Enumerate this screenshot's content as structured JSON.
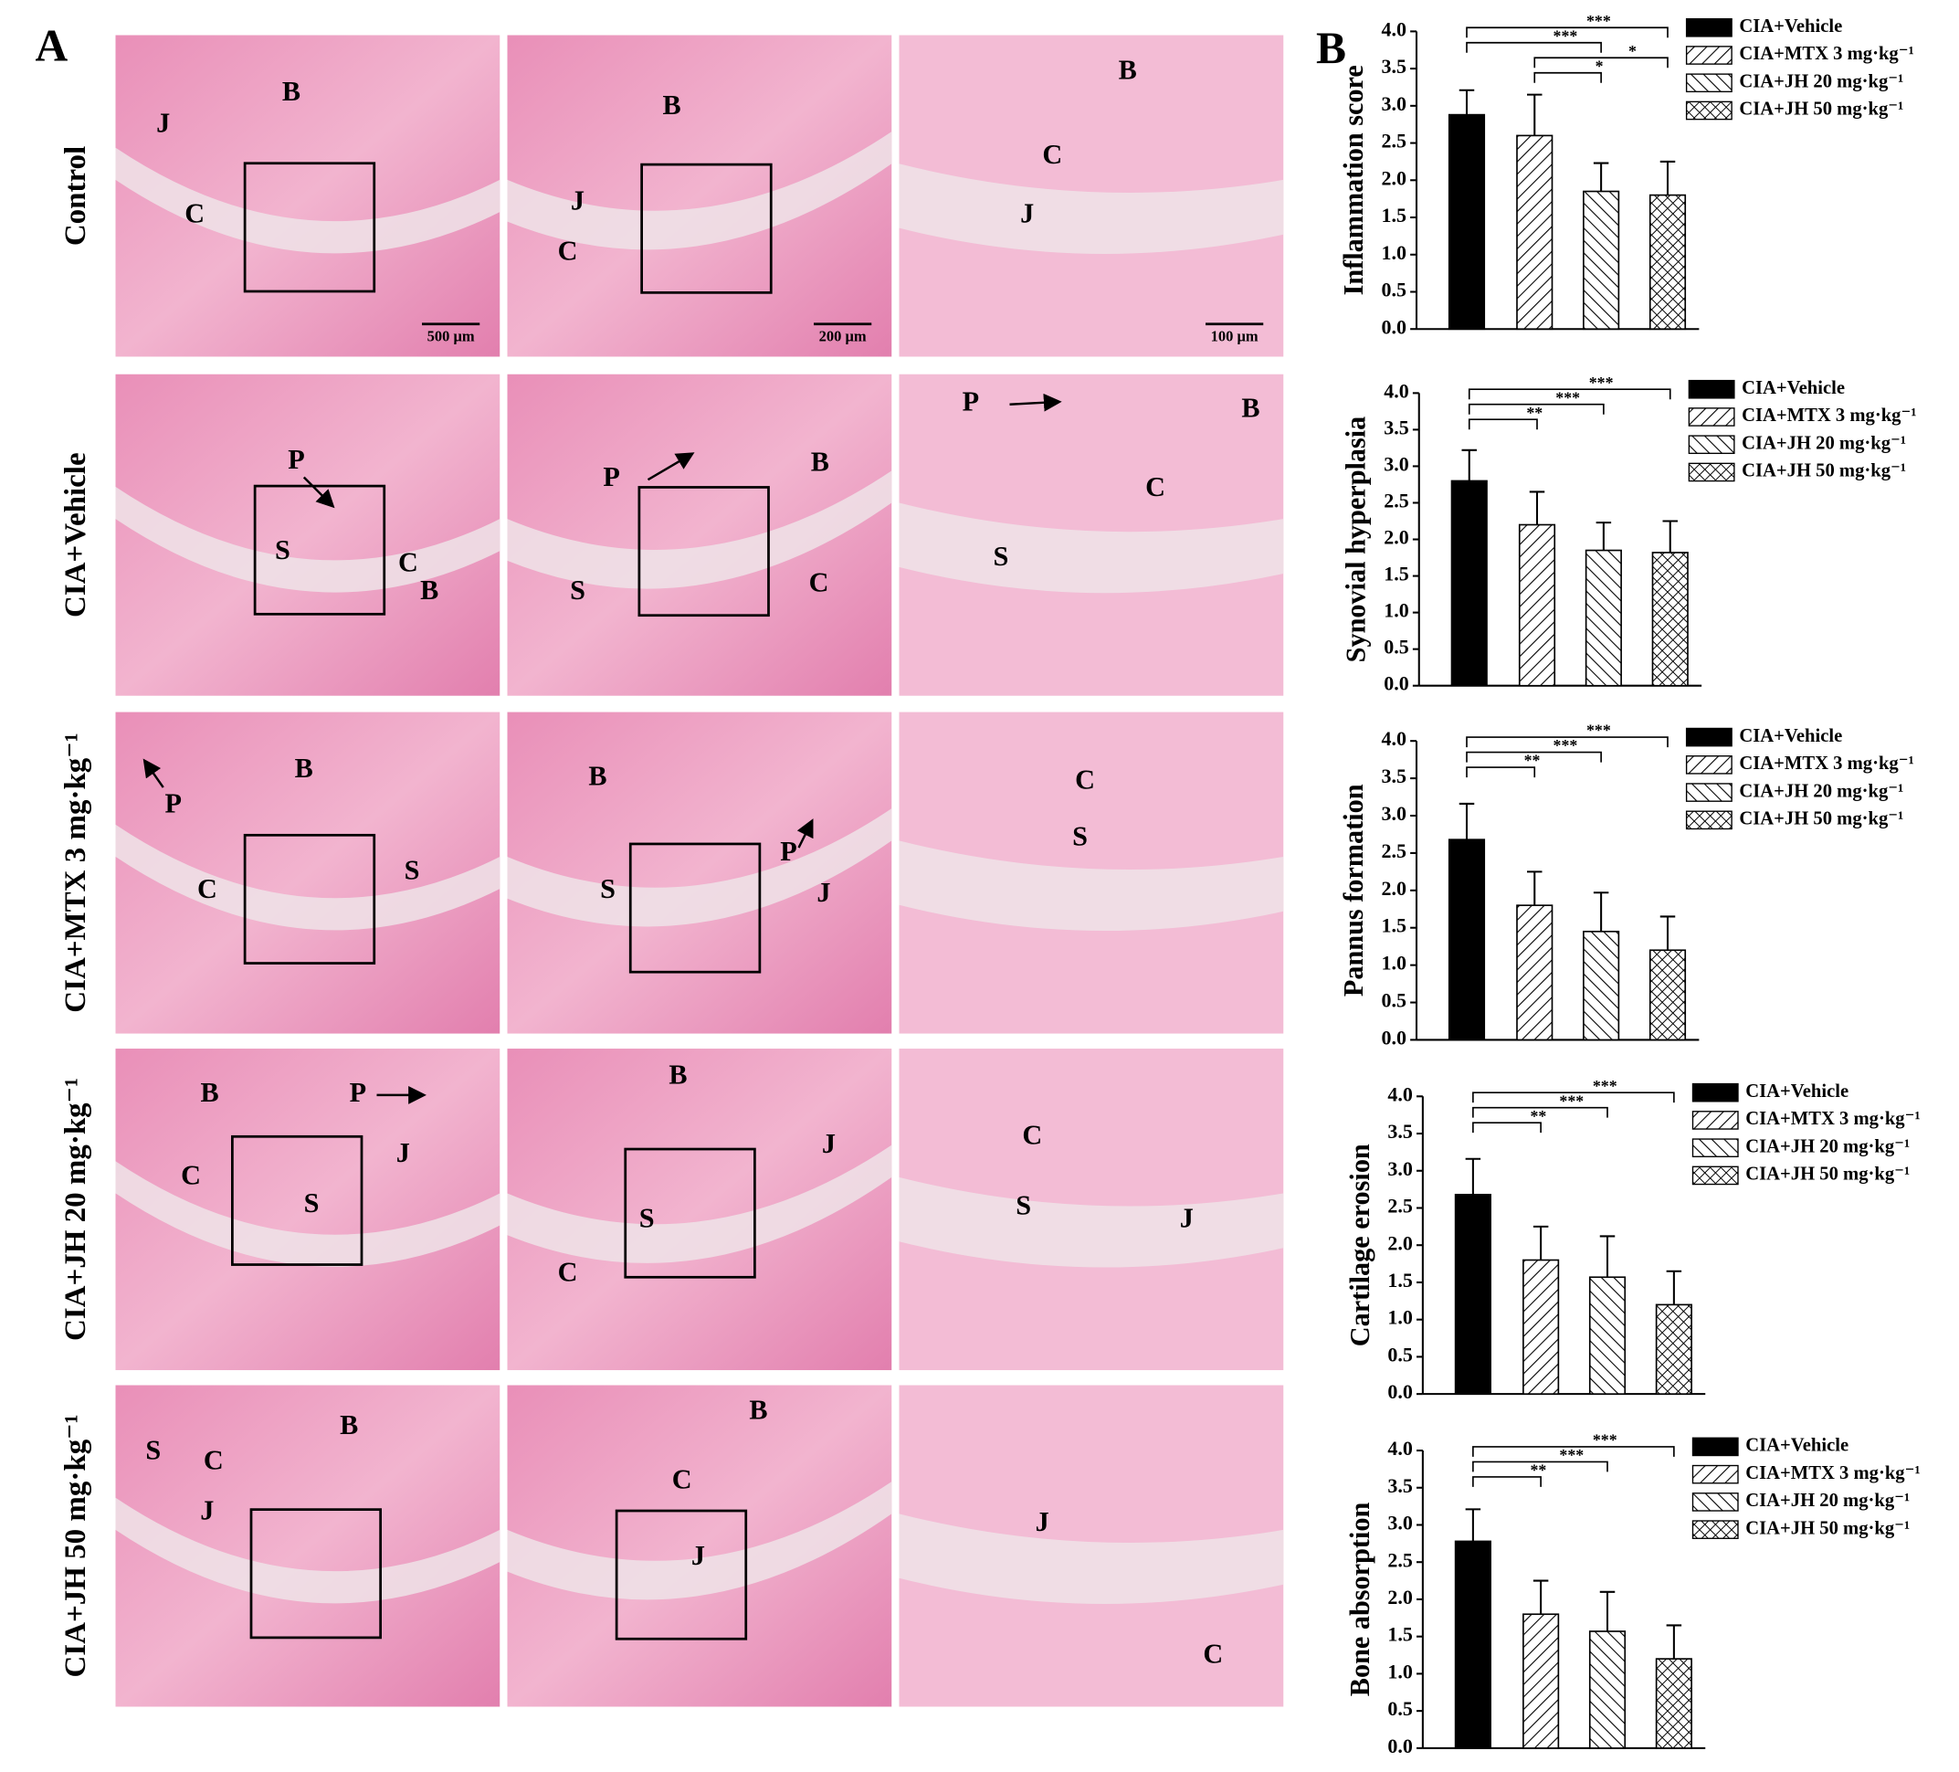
{
  "panel_a": {
    "label": "A",
    "rows": [
      {
        "label": "Control",
        "images": [
          {
            "labels": [
              "J",
              "B",
              "C"
            ],
            "scale_bar": "500 μm"
          },
          {
            "labels": [
              "B",
              "J",
              "C"
            ],
            "scale_bar": "200 μm"
          },
          {
            "labels": [
              "B",
              "C",
              "J"
            ],
            "scale_bar": "100 μm"
          }
        ]
      },
      {
        "label": "CIA+Vehicle",
        "images": [
          {
            "labels": [
              "P",
              "S",
              "C",
              "B"
            ]
          },
          {
            "labels": [
              "P",
              "B",
              "S",
              "C"
            ]
          },
          {
            "labels": [
              "P",
              "B",
              "C",
              "S"
            ]
          }
        ]
      },
      {
        "label": "CIA+MTX 3 mg·kg⁻¹",
        "images": [
          {
            "labels": [
              "B",
              "P",
              "C",
              "S"
            ]
          },
          {
            "labels": [
              "B",
              "P",
              "S",
              "J"
            ]
          },
          {
            "labels": [
              "C",
              "S"
            ]
          }
        ]
      },
      {
        "label": "CIA+JH 20 mg·kg⁻¹",
        "images": [
          {
            "labels": [
              "B",
              "P",
              "C",
              "J",
              "S"
            ]
          },
          {
            "labels": [
              "B",
              "J",
              "S",
              "C"
            ]
          },
          {
            "labels": [
              "C",
              "S",
              "J"
            ]
          }
        ]
      },
      {
        "label": "CIA+JH 50 mg·kg⁻¹",
        "images": [
          {
            "labels": [
              "S",
              "C",
              "B",
              "J"
            ]
          },
          {
            "labels": [
              "B",
              "C",
              "J"
            ]
          },
          {
            "labels": [
              "J",
              "C"
            ]
          }
        ]
      }
    ]
  },
  "panel_b_label": "B",
  "chart_data": [
    {
      "type": "bar",
      "ylabel": "Inflammation score",
      "categories": [
        "CIA+Vehicle",
        "CIA+MTX 3 mg·kg⁻¹",
        "CIA+JH 20 mg·kg⁻¹",
        "CIA+JH 50 mg·kg⁻¹"
      ],
      "values": [
        2.88,
        2.6,
        1.85,
        1.8
      ],
      "errors": [
        0.33,
        0.55,
        0.38,
        0.45
      ],
      "fills": [
        "solid",
        "hatch-up",
        "hatch-down",
        "crosshatch"
      ],
      "ylim": [
        0,
        4
      ],
      "yticks": [
        {
          "value": 0,
          "label": "0.0"
        },
        0.5,
        {
          "value": 1,
          "label": "1.0"
        },
        1.5,
        {
          "value": 2,
          "label": "2.0"
        },
        2.5,
        {
          "value": 3,
          "label": "3.0"
        },
        3.5,
        {
          "value": 4,
          "label": "4.0"
        }
      ],
      "comparisons": [
        {
          "pair": [
            1,
            2
          ],
          "label": "*"
        },
        {
          "pair": [
            1,
            3
          ],
          "label": "*"
        },
        {
          "pair": [
            0,
            2
          ],
          "label": "***"
        },
        {
          "pair": [
            0,
            3
          ],
          "label": "***"
        }
      ]
    },
    {
      "type": "bar",
      "ylabel": "Synovial hyperplasia",
      "categories": [
        "CIA+Vehicle",
        "CIA+MTX 3 mg·kg⁻¹",
        "CIA+JH 20 mg·kg⁻¹",
        "CIA+JH 50 mg·kg⁻¹"
      ],
      "values": [
        2.8,
        2.2,
        1.85,
        1.82
      ],
      "errors": [
        0.42,
        0.45,
        0.38,
        0.43
      ],
      "fills": [
        "solid",
        "hatch-up",
        "hatch-down",
        "crosshatch"
      ],
      "ylim": [
        0,
        4
      ],
      "yticks": [
        {
          "value": 0,
          "label": "0.0"
        },
        0.5,
        {
          "value": 1,
          "label": "1.0"
        },
        1.5,
        {
          "value": 2,
          "label": "2.0"
        },
        2.5,
        {
          "value": 3,
          "label": "3.0"
        },
        3.5,
        {
          "value": 4,
          "label": "4.0"
        }
      ],
      "comparisons": [
        {
          "pair": [
            0,
            1
          ],
          "label": "**"
        },
        {
          "pair": [
            0,
            2
          ],
          "label": "***"
        },
        {
          "pair": [
            0,
            3
          ],
          "label": "***"
        }
      ]
    },
    {
      "type": "bar",
      "ylabel": "Pannus formation",
      "categories": [
        "CIA+Vehicle",
        "CIA+MTX 3 mg·kg⁻¹",
        "CIA+JH 20 mg·kg⁻¹",
        "CIA+JH 50 mg·kg⁻¹"
      ],
      "values": [
        2.68,
        1.8,
        1.45,
        1.2
      ],
      "errors": [
        0.48,
        0.45,
        0.52,
        0.45
      ],
      "fills": [
        "solid",
        "hatch-up",
        "hatch-down",
        "crosshatch"
      ],
      "ylim": [
        0,
        4
      ],
      "yticks": [
        {
          "value": 0,
          "label": "0.0"
        },
        0.5,
        {
          "value": 1,
          "label": "1.0"
        },
        1.5,
        {
          "value": 2,
          "label": "2.0"
        },
        2.5,
        {
          "value": 3,
          "label": "3.0"
        },
        3.5,
        {
          "value": 4,
          "label": "4.0"
        }
      ],
      "comparisons": [
        {
          "pair": [
            0,
            1
          ],
          "label": "**"
        },
        {
          "pair": [
            0,
            2
          ],
          "label": "***"
        },
        {
          "pair": [
            0,
            3
          ],
          "label": "***"
        }
      ]
    },
    {
      "type": "bar",
      "ylabel": "Cartilage erosion",
      "categories": [
        "CIA+Vehicle",
        "CIA+MTX 3 mg·kg⁻¹",
        "CIA+JH 20 mg·kg⁻¹",
        "CIA+JH 50 mg·kg⁻¹"
      ],
      "values": [
        2.68,
        1.8,
        1.57,
        1.2
      ],
      "errors": [
        0.48,
        0.45,
        0.55,
        0.45
      ],
      "fills": [
        "solid",
        "hatch-up",
        "hatch-down",
        "crosshatch"
      ],
      "ylim": [
        0,
        4
      ],
      "yticks": [
        {
          "value": 0,
          "label": "0.0"
        },
        0.5,
        {
          "value": 1,
          "label": "1.0"
        },
        1.5,
        {
          "value": 2,
          "label": "2.0"
        },
        2.5,
        {
          "value": 3,
          "label": "3.0"
        },
        3.5,
        {
          "value": 4,
          "label": "4.0"
        }
      ],
      "comparisons": [
        {
          "pair": [
            0,
            1
          ],
          "label": "**"
        },
        {
          "pair": [
            0,
            2
          ],
          "label": "***"
        },
        {
          "pair": [
            0,
            3
          ],
          "label": "***"
        }
      ]
    },
    {
      "type": "bar",
      "ylabel": "Bone absorption",
      "categories": [
        "CIA+Vehicle",
        "CIA+MTX 3 mg·kg⁻¹",
        "CIA+JH 20 mg·kg⁻¹",
        "CIA+JH 50 mg·kg⁻¹"
      ],
      "values": [
        2.78,
        1.8,
        1.57,
        1.2
      ],
      "errors": [
        0.43,
        0.45,
        0.53,
        0.45
      ],
      "fills": [
        "solid",
        "hatch-up",
        "hatch-down",
        "crosshatch"
      ],
      "ylim": [
        0,
        4
      ],
      "yticks": [
        {
          "value": 0,
          "label": "0.0"
        },
        0.5,
        {
          "value": 1,
          "label": "1.0"
        },
        1.5,
        {
          "value": 2,
          "label": "2.0"
        },
        2.5,
        {
          "value": 3,
          "label": "3.0"
        },
        3.5,
        {
          "value": 4,
          "label": "4.0"
        }
      ],
      "comparisons": [
        {
          "pair": [
            0,
            1
          ],
          "label": "**"
        },
        {
          "pair": [
            0,
            2
          ],
          "label": "***"
        },
        {
          "pair": [
            0,
            3
          ],
          "label": "***"
        }
      ]
    }
  ]
}
